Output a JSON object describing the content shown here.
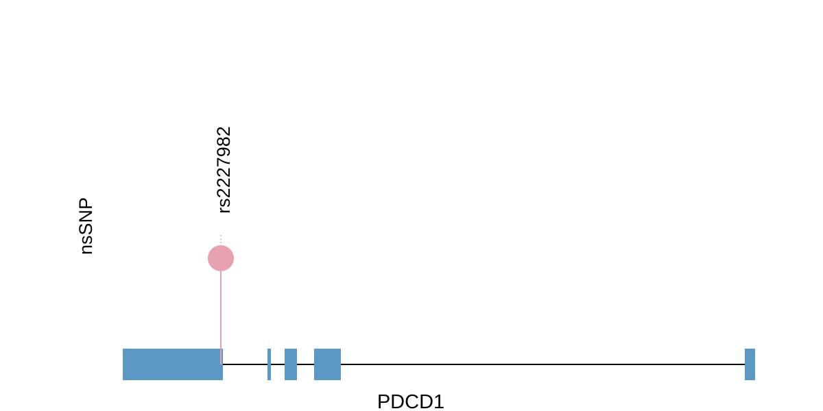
{
  "track": {
    "y_label": "nsSNP"
  },
  "gene": {
    "name": "PDCD1",
    "color": "#5b98c4",
    "line_color": "#000000"
  },
  "snp": {
    "id": "rs2227982",
    "color": "#e8a1b1",
    "guide_color": "#bbbbbb"
  }
}
